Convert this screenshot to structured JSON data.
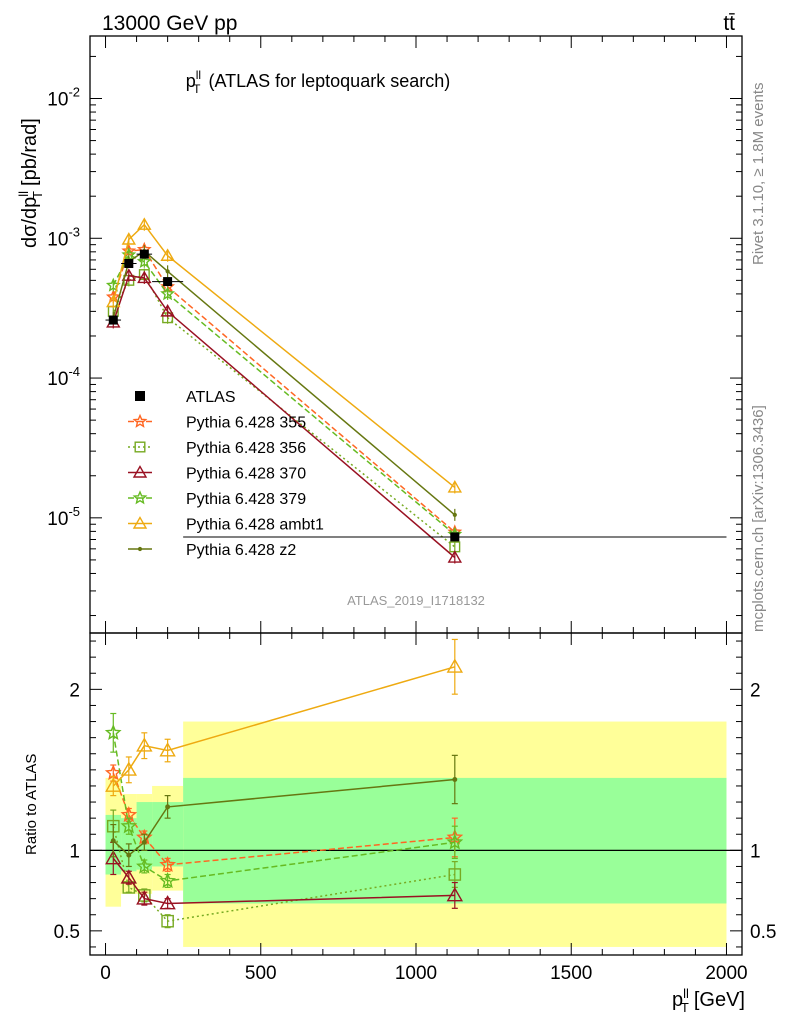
{
  "header": {
    "left": "13000 GeV pp",
    "right": "tt̄"
  },
  "side_labels": {
    "rivet": "Rivet 3.1.10, ≥ 1.8M events",
    "mcplots": "mcplots.cern.ch [arXiv:1306.3436]"
  },
  "chart_data": {
    "type": "line",
    "title_main": "p",
    "title_sup": "ll",
    "title_sub": "T",
    "title_rest": "(ATLAS for leptoquark search)",
    "watermark": "ATLAS_2019_I1718132",
    "xlabel": {
      "main": "p",
      "sup": "ll",
      "sub": "T",
      "rest": "[GeV]"
    },
    "ylabel": {
      "pre": "dσ/dp",
      "sup": "ll",
      "sub": "T",
      "rest": "[pb/rad]"
    },
    "ratio_ylabel": "Ratio to ATLAS",
    "xlim": [
      -50,
      2050
    ],
    "ylim": [
      1.5e-06,
      0.028
    ],
    "ratio_ylim": [
      0.35,
      2.35
    ],
    "log_y": true,
    "x_ticks": [
      0,
      500,
      1000,
      1500,
      2000
    ],
    "y_ticks": [
      {
        "exp": "-5",
        "value": 1e-05
      },
      {
        "exp": "-4",
        "value": 0.0001
      },
      {
        "exp": "-3",
        "value": 0.001
      },
      {
        "exp": "-2",
        "value": 0.01
      }
    ],
    "ratio_ticks": [
      0.5,
      1,
      2
    ],
    "x": [
      25,
      75,
      125,
      200,
      1125
    ],
    "data": {
      "name": "ATLAS",
      "y": [
        0.00026,
        0.00066,
        0.00077,
        0.00049,
        7.3e-06
      ],
      "bins": [
        [
          0,
          50
        ],
        [
          50,
          100
        ],
        [
          100,
          150
        ],
        [
          150,
          250
        ],
        [
          250,
          2000
        ]
      ]
    },
    "bands": {
      "stat_color": "#99ff99",
      "syst_color": "#ffff99",
      "inner": [
        [
          0.85,
          1.22
        ],
        [
          0.87,
          1.2
        ],
        [
          0.88,
          1.3
        ],
        [
          0.9,
          1.3
        ],
        [
          0.67,
          1.45
        ]
      ],
      "outer": [
        [
          0.65,
          1.45
        ],
        [
          0.73,
          1.35
        ],
        [
          0.73,
          1.35
        ],
        [
          0.75,
          1.4
        ],
        [
          0.4,
          1.8
        ]
      ]
    },
    "series": [
      {
        "name": "Pythia 6.428 355",
        "color": "#ff6622",
        "dash": "6,3",
        "marker": "star",
        "y": [
          0.00038,
          0.00081,
          0.00083,
          0.00045,
          7.9e-06
        ],
        "ratio": [
          1.48,
          1.22,
          1.08,
          0.91,
          1.08
        ],
        "ratio_err": [
          0.05,
          0.04,
          0.04,
          0.04,
          0.12
        ]
      },
      {
        "name": "Pythia 6.428 356",
        "color": "#77aa22",
        "dash": "2,3",
        "marker": "square",
        "y": [
          0.0003,
          0.0005,
          0.00055,
          0.00027,
          6.2e-06
        ],
        "ratio": [
          1.15,
          0.77,
          0.72,
          0.56,
          0.85
        ],
        "ratio_err": [
          0.1,
          0.03,
          0.04,
          0.04,
          0.08
        ]
      },
      {
        "name": "Pythia 6.428 370",
        "color": "#991122",
        "dash": "",
        "marker": "triangle",
        "y": [
          0.00025,
          0.00054,
          0.00052,
          0.0003,
          5.2e-06
        ],
        "ratio": [
          0.95,
          0.83,
          0.7,
          0.67,
          0.72
        ],
        "ratio_err": [
          0.1,
          0.04,
          0.04,
          0.03,
          0.08
        ]
      },
      {
        "name": "Pythia 6.428 379",
        "color": "#66bb22",
        "dash": "6,3",
        "marker": "star",
        "y": [
          0.00046,
          0.00076,
          0.00068,
          0.0004,
          7.6e-06
        ],
        "ratio": [
          1.73,
          1.15,
          0.9,
          0.81,
          1.05
        ],
        "ratio_err": [
          0.12,
          0.05,
          0.04,
          0.04,
          0.1
        ]
      },
      {
        "name": "Pythia 6.428 ambt1",
        "color": "#eeaa11",
        "dash": "",
        "marker": "triangle",
        "y": [
          0.00035,
          0.00098,
          0.00125,
          0.00075,
          1.65e-05
        ],
        "ratio": [
          1.4,
          1.5,
          1.65,
          1.62,
          2.14
        ],
        "ratio_err": [
          0.06,
          0.08,
          0.08,
          0.07,
          0.17
        ]
      },
      {
        "name": "Pythia 6.428 z2",
        "color": "#667711",
        "dash": "",
        "marker": "dot",
        "y": [
          0.00027,
          0.00068,
          0.00081,
          0.00058,
          1.05e-05
        ],
        "ratio": [
          1.06,
          0.97,
          1.05,
          1.27,
          1.44
        ],
        "ratio_err": [
          0.1,
          0.07,
          0.05,
          0.07,
          0.15
        ]
      }
    ]
  }
}
